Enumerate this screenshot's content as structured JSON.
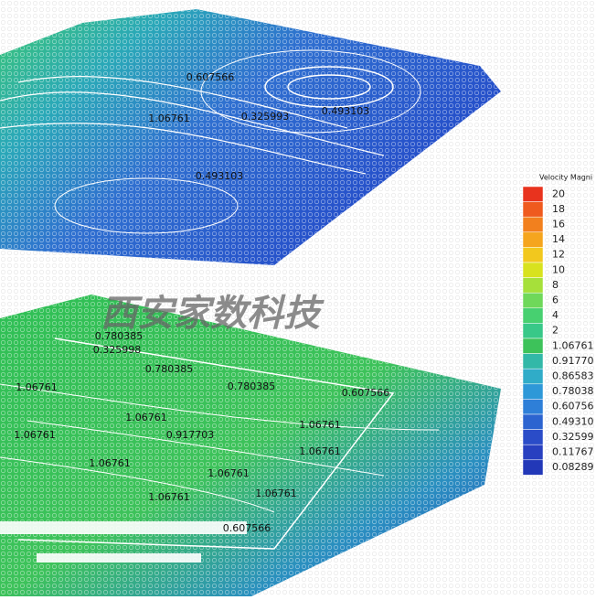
{
  "legend": {
    "title": "Velocity Magni",
    "labels": [
      "20",
      "18",
      "16",
      "14",
      "12",
      "10",
      "8",
      "6",
      "4",
      "2",
      "1.06761",
      "0.91770",
      "0.86583",
      "0.78038",
      "0.60756",
      "0.49310",
      "0.32599",
      "0.11767",
      "0.08289"
    ]
  },
  "watermark": "西安家数科技",
  "top_plane_labels": [
    "0.607566",
    "1.06761",
    "0.325993",
    "0.493103",
    "0.493103"
  ],
  "bottom_plane_labels": [
    "0.780385",
    "0.325998",
    "0.780385",
    "1.06761",
    "0.780385",
    "0.607566",
    "1.06761",
    "1.06761",
    "0.917703",
    "1.06761",
    "1.06761",
    "1.06761",
    "1.06761",
    "1.06761",
    "1.06761",
    "0.607566"
  ]
}
